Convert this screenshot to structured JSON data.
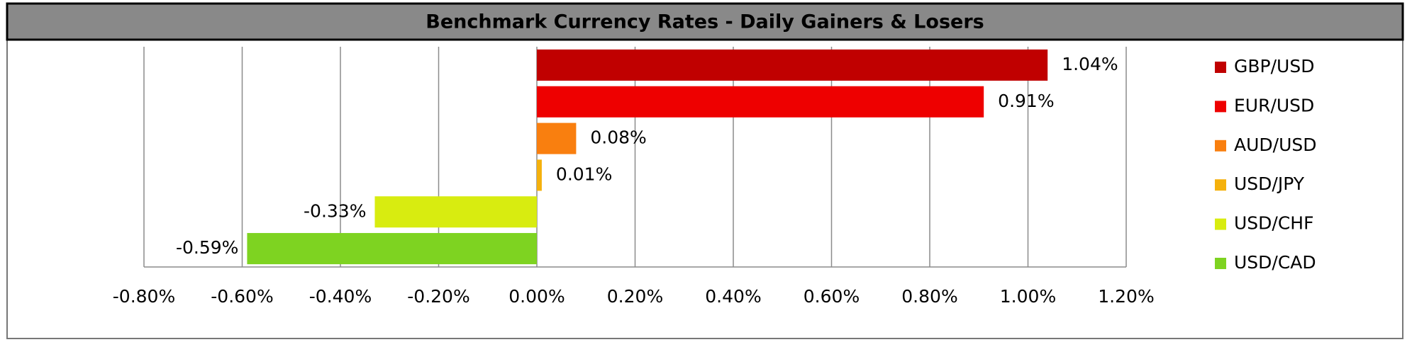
{
  "chart_data": {
    "type": "hbar",
    "title": "Benchmark Currency Rates - Daily Gainers & Losers",
    "categories": [
      "GBP/USD",
      "EUR/USD",
      "AUD/USD",
      "USD/JPY",
      "USD/CHF",
      "USD/CAD"
    ],
    "values": [
      1.04,
      0.91,
      0.08,
      0.01,
      -0.33,
      -0.59
    ],
    "value_labels": [
      "1.04%",
      "0.91%",
      "0.08%",
      "0.01%",
      "-0.33%",
      "-0.59%"
    ],
    "colors": [
      "#c00000",
      "#ee0000",
      "#f97f0f",
      "#f5b10c",
      "#d8ec10",
      "#7ed321"
    ],
    "xlim": [
      -0.8,
      1.2
    ],
    "xticks": [
      {
        "value": -0.8,
        "label": "-0.80%"
      },
      {
        "value": -0.6,
        "label": "-0.60%"
      },
      {
        "value": -0.4,
        "label": "-0.40%"
      },
      {
        "value": -0.2,
        "label": "-0.20%"
      },
      {
        "value": 0,
        "label": "0.00%"
      },
      {
        "value": 0.2,
        "label": "0.20%"
      },
      {
        "value": 0.4,
        "label": "0.40%"
      },
      {
        "value": 0.6,
        "label": "0.60%"
      },
      {
        "value": 0.8,
        "label": "0.80%"
      },
      {
        "value": 1.0,
        "label": "1.00%"
      },
      {
        "value": 1.2,
        "label": "1.20%"
      }
    ],
    "grid": true,
    "legend": "right"
  }
}
